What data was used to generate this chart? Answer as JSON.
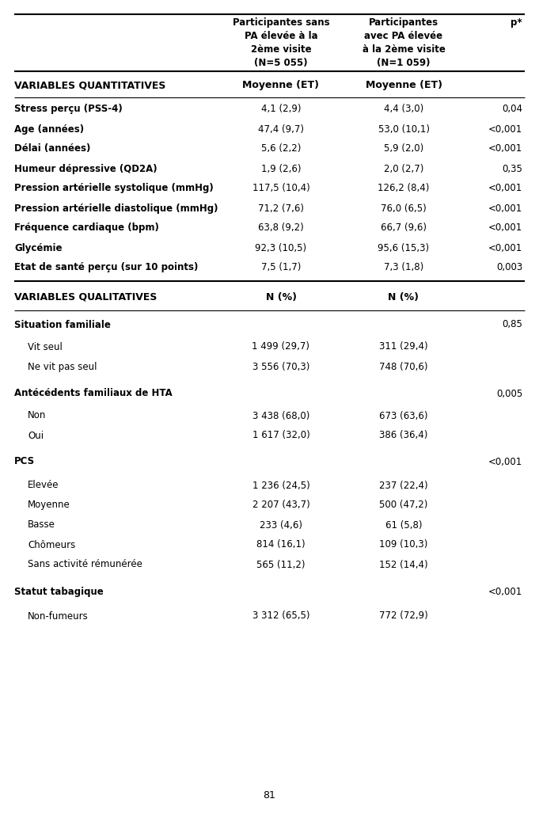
{
  "col1_header_line1": "Participantes sans",
  "col1_header_line2": "PA élevée à la",
  "col1_header_line3": "2ème visite",
  "col1_header_line4": "(N=5 055)",
  "col2_header_line1": "Participantes",
  "col2_header_line2": "avec PA élevée",
  "col2_header_line3": "à la 2ème visite",
  "col2_header_line4": "(N=1 059)",
  "col3_header": "p*",
  "rows": [
    {
      "label": "VARIABLES QUANTITATIVES",
      "col1": "Moyenne (ET)",
      "col2": "Moyenne (ET)",
      "col3": "",
      "type": "section_header",
      "indent": 0
    },
    {
      "label": "Stress perçu (PSS-4)",
      "col1": "4,1 (2,9)",
      "col2": "4,4 (3,0)",
      "col3": "0,04",
      "type": "data_bold",
      "indent": 0
    },
    {
      "label": "Age (années)",
      "col1": "47,4 (9,7)",
      "col2": "53,0 (10,1)",
      "col3": "<0,001",
      "type": "data_bold",
      "indent": 0
    },
    {
      "label": "Délai (années)",
      "col1": "5,6 (2,2)",
      "col2": "5,9 (2,0)",
      "col3": "<0,001",
      "type": "data_bold",
      "indent": 0
    },
    {
      "label": "Humeur dépressive (QD2A)",
      "col1": "1,9 (2,6)",
      "col2": "2,0 (2,7)",
      "col3": "0,35",
      "type": "data_bold",
      "indent": 0
    },
    {
      "label": "Pression artérielle systolique (mmHg)",
      "col1": "117,5 (10,4)",
      "col2": "126,2 (8,4)",
      "col3": "<0,001",
      "type": "data_bold",
      "indent": 0
    },
    {
      "label": "Pression artérielle diastolique (mmHg)",
      "col1": "71,2 (7,6)",
      "col2": "76,0 (6,5)",
      "col3": "<0,001",
      "type": "data_bold",
      "indent": 0
    },
    {
      "label": "Fréquence cardiaque (bpm)",
      "col1": "63,8 (9,2)",
      "col2": "66,7 (9,6)",
      "col3": "<0,001",
      "type": "data_bold",
      "indent": 0
    },
    {
      "label": "Glycémie",
      "col1": "92,3 (10,5)",
      "col2": "95,6 (15,3)",
      "col3": "<0,001",
      "type": "data_bold",
      "indent": 0
    },
    {
      "label": "Etat de santé perçu (sur 10 points)",
      "col1": "7,5 (1,7)",
      "col2": "7,3 (1,8)",
      "col3": "0,003",
      "type": "data_bold",
      "indent": 0
    },
    {
      "label": "VARIABLES QUALITATIVES",
      "col1": "N (%)",
      "col2": "N (%)",
      "col3": "",
      "type": "section_header",
      "indent": 0
    },
    {
      "label": "Situation familiale",
      "col1": "",
      "col2": "",
      "col3": "0,85",
      "type": "subsection_bold",
      "indent": 0
    },
    {
      "label": "Vit seul",
      "col1": "1 499 (29,7)",
      "col2": "311 (29,4)",
      "col3": "",
      "type": "data_normal",
      "indent": 1
    },
    {
      "label": "Ne vit pas seul",
      "col1": "3 556 (70,3)",
      "col2": "748 (70,6)",
      "col3": "",
      "type": "data_normal",
      "indent": 1
    },
    {
      "label": "Antécédents familiaux de HTA",
      "col1": "",
      "col2": "",
      "col3": "0,005",
      "type": "subsection_bold",
      "indent": 0
    },
    {
      "label": "Non",
      "col1": "3 438 (68,0)",
      "col2": "673 (63,6)",
      "col3": "",
      "type": "data_normal",
      "indent": 1
    },
    {
      "label": "Oui",
      "col1": "1 617 (32,0)",
      "col2": "386 (36,4)",
      "col3": "",
      "type": "data_normal",
      "indent": 1
    },
    {
      "label": "PCS",
      "col1": "",
      "col2": "",
      "col3": "<0,001",
      "type": "subsection_bold",
      "indent": 0
    },
    {
      "label": "Elevée",
      "col1": "1 236 (24,5)",
      "col2": "237 (22,4)",
      "col3": "",
      "type": "data_normal",
      "indent": 1
    },
    {
      "label": "Moyenne",
      "col1": "2 207 (43,7)",
      "col2": "500 (47,2)",
      "col3": "",
      "type": "data_normal",
      "indent": 1
    },
    {
      "label": "Basse",
      "col1": "233 (4,6)",
      "col2": "61 (5,8)",
      "col3": "",
      "type": "data_normal",
      "indent": 1
    },
    {
      "label": "Chômeurs",
      "col1": "814 (16,1)",
      "col2": "109 (10,3)",
      "col3": "",
      "type": "data_normal",
      "indent": 1
    },
    {
      "label": "Sans activité rémunérée",
      "col1": "565 (11,2)",
      "col2": "152 (14,4)",
      "col3": "",
      "type": "data_normal",
      "indent": 1
    },
    {
      "label": "Statut tabagique",
      "col1": "",
      "col2": "",
      "col3": "<0,001",
      "type": "subsection_bold",
      "indent": 0
    },
    {
      "label": "Non-fumeurs",
      "col1": "3 312 (65,5)",
      "col2": "772 (72,9)",
      "col3": "",
      "type": "data_normal",
      "indent": 1
    }
  ],
  "page_number": "81",
  "bg_color": "#ffffff",
  "text_color": "#000000",
  "line_color": "#000000"
}
